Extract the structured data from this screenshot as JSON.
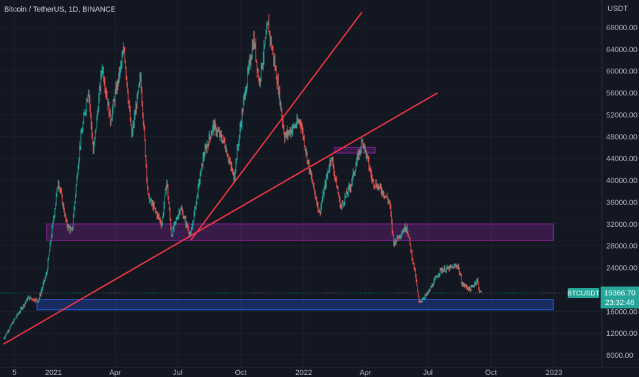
{
  "header": {
    "title": "Bitcoin / TetherUS, 1D, BINANCE"
  },
  "price_axis": {
    "currency": "USDT",
    "ticks": [
      "68000.00",
      "64000.00",
      "60000.00",
      "56000.00",
      "52000.00",
      "48000.00",
      "44000.00",
      "40000.00",
      "36000.00",
      "32000.00",
      "28000.00",
      "24000.00",
      "16000.00",
      "12000.00",
      "8000.00"
    ]
  },
  "time_axis": {
    "ticks": [
      "5",
      "2021",
      "Apr",
      "Jul",
      "Oct",
      "2022",
      "Apr",
      "Jul",
      "Oct",
      "2023"
    ]
  },
  "last_price": {
    "symbol": "BTCUSDT",
    "price": "19366.70",
    "countdown": "23:32:46"
  },
  "colors": {
    "background": "#131722",
    "grid": "#1e222d",
    "up": "#26a69a",
    "down": "#ef5350",
    "trendline": "#f23645",
    "purple_zone": "#9c27b0",
    "blue_zone": "#2962ff"
  },
  "chart_data": {
    "type": "candlestick",
    "title": "Bitcoin / TetherUS, 1D, BINANCE",
    "ylabel": "USDT",
    "ylim": [
      7000,
      72000
    ],
    "grid": true,
    "close_path": [
      [
        "2020-10-20",
        11000
      ],
      [
        "2020-11-05",
        14500
      ],
      [
        "2020-11-25",
        18500
      ],
      [
        "2020-12-10",
        18000
      ],
      [
        "2020-12-22",
        23000
      ],
      [
        "2021-01-08",
        40000
      ],
      [
        "2021-01-20",
        32000
      ],
      [
        "2021-01-28",
        30500
      ],
      [
        "2021-02-08",
        46000
      ],
      [
        "2021-02-21",
        57000
      ],
      [
        "2021-02-28",
        45000
      ],
      [
        "2021-03-13",
        61000
      ],
      [
        "2021-03-25",
        51000
      ],
      [
        "2021-04-14",
        64000
      ],
      [
        "2021-04-25",
        48000
      ],
      [
        "2021-05-08",
        59000
      ],
      [
        "2021-05-19",
        37000
      ],
      [
        "2021-06-08",
        32000
      ],
      [
        "2021-06-15",
        40000
      ],
      [
        "2021-06-22",
        30000
      ],
      [
        "2021-07-05",
        35000
      ],
      [
        "2021-07-20",
        29800
      ],
      [
        "2021-08-07",
        44000
      ],
      [
        "2021-08-22",
        50000
      ],
      [
        "2021-09-07",
        47000
      ],
      [
        "2021-09-21",
        40500
      ],
      [
        "2021-10-06",
        55000
      ],
      [
        "2021-10-20",
        66000
      ],
      [
        "2021-10-28",
        58000
      ],
      [
        "2021-11-10",
        68500
      ],
      [
        "2021-11-25",
        57000
      ],
      [
        "2021-12-04",
        48000
      ],
      [
        "2021-12-27",
        51000
      ],
      [
        "2022-01-10",
        41500
      ],
      [
        "2022-01-24",
        34000
      ],
      [
        "2022-02-10",
        44500
      ],
      [
        "2022-02-24",
        35000
      ],
      [
        "2022-03-10",
        39000
      ],
      [
        "2022-03-28",
        47500
      ],
      [
        "2022-04-11",
        40000
      ],
      [
        "2022-04-26",
        38000
      ],
      [
        "2022-05-06",
        36000
      ],
      [
        "2022-05-12",
        28500
      ],
      [
        "2022-05-31",
        31700
      ],
      [
        "2022-06-13",
        22500
      ],
      [
        "2022-06-18",
        17600
      ],
      [
        "2022-07-01",
        19300
      ],
      [
        "2022-07-19",
        23500
      ],
      [
        "2022-07-30",
        23800
      ],
      [
        "2022-08-14",
        24400
      ],
      [
        "2022-08-20",
        21000
      ],
      [
        "2022-09-01",
        20000
      ],
      [
        "2022-09-11",
        21800
      ],
      [
        "2022-09-13",
        20200
      ],
      [
        "2022-09-17",
        19366.7
      ]
    ],
    "last_price": 19366.7,
    "zones": [
      {
        "type": "rectangle",
        "x": [
          "2020-12-22",
          "2022-12-31"
        ],
        "y": [
          29000,
          32000
        ],
        "color": "#9c27b0"
      },
      {
        "type": "rectangle",
        "x": [
          "2022-02-15",
          "2022-04-15"
        ],
        "y": [
          45000,
          46000
        ],
        "color": "#9c27b0"
      },
      {
        "type": "rectangle",
        "x": [
          "2020-12-08",
          "2022-12-31"
        ],
        "y": [
          16300,
          18200
        ],
        "color": "#2962ff"
      }
    ],
    "trendlines": [
      {
        "from": [
          "2020-10-20",
          10000
        ],
        "to": [
          "2022-07-15",
          56000
        ]
      },
      {
        "from": [
          "2021-07-20",
          29000
        ],
        "to": [
          "2022-03-27",
          70800
        ]
      }
    ]
  }
}
